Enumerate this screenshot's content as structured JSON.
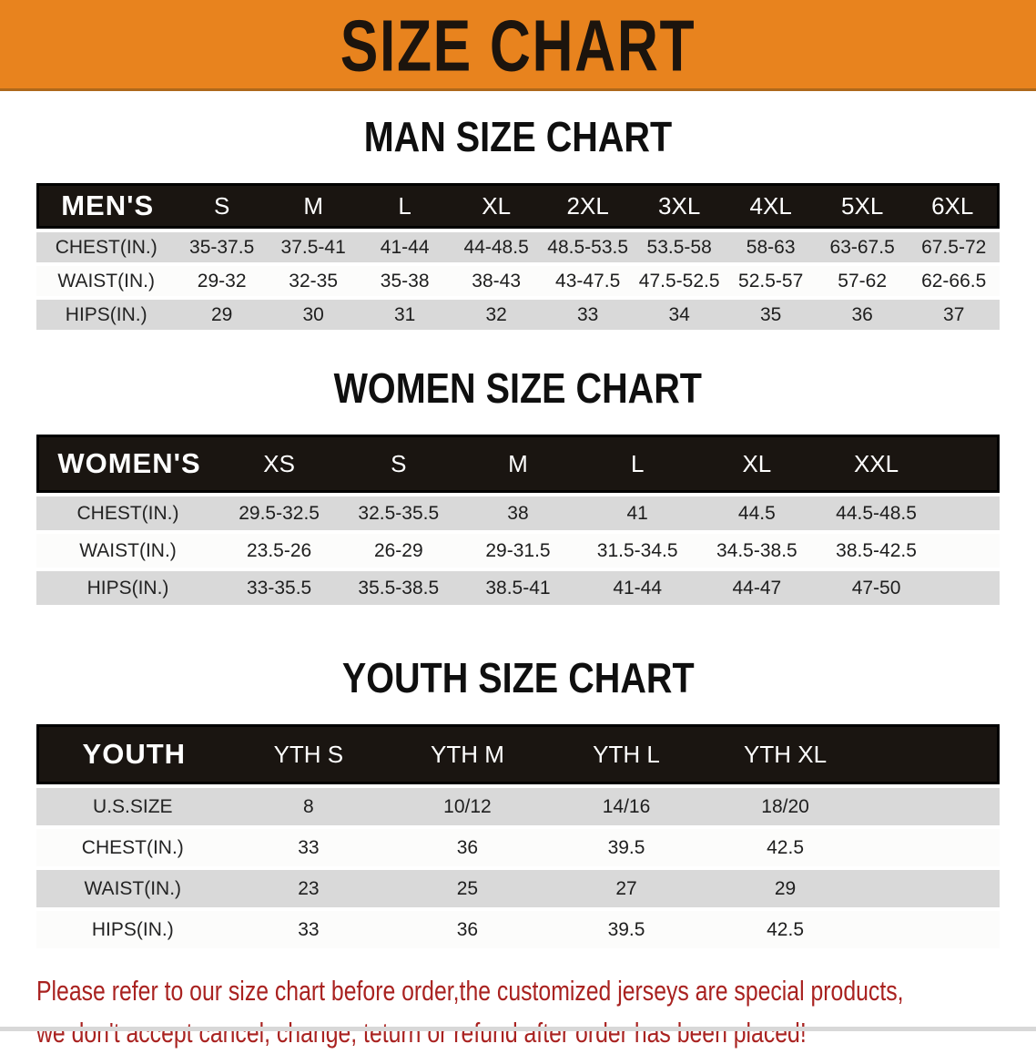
{
  "banner": {
    "title": "SIZE CHART",
    "bg_color": "#E8831E",
    "text_color": "#1C140D"
  },
  "men": {
    "heading": "MAN SIZE CHART",
    "header_label": "MEN'S",
    "columns": [
      "S",
      "M",
      "L",
      "XL",
      "2XL",
      "3XL",
      "4XL",
      "5XL",
      "6XL"
    ],
    "rows": [
      {
        "label": "CHEST(IN.)",
        "values": [
          "35-37.5",
          "37.5-41",
          "41-44",
          "44-48.5",
          "48.5-53.5",
          "53.5-58",
          "58-63",
          "63-67.5",
          "67.5-72"
        ]
      },
      {
        "label": "WAIST(IN.)",
        "values": [
          "29-32",
          "32-35",
          "35-38",
          "38-43",
          "43-47.5",
          "47.5-52.5",
          "52.5-57",
          "57-62",
          "62-66.5"
        ]
      },
      {
        "label": "HIPS(IN.)",
        "values": [
          "29",
          "30",
          "31",
          "32",
          "33",
          "34",
          "35",
          "36",
          "37"
        ]
      }
    ]
  },
  "women": {
    "heading": "WOMEN SIZE CHART",
    "header_label": "WOMEN'S",
    "columns": [
      "XS",
      "S",
      "M",
      "L",
      "XL",
      "XXL"
    ],
    "rows": [
      {
        "label": "CHEST(IN.)",
        "values": [
          "29.5-32.5",
          "32.5-35.5",
          "38",
          "41",
          "44.5",
          "44.5-48.5"
        ]
      },
      {
        "label": "WAIST(IN.)",
        "values": [
          "23.5-26",
          "26-29",
          "29-31.5",
          "31.5-34.5",
          "34.5-38.5",
          "38.5-42.5"
        ]
      },
      {
        "label": "HIPS(IN.)",
        "values": [
          "33-35.5",
          "35.5-38.5",
          "38.5-41",
          "41-44",
          "44-47",
          "47-50"
        ]
      }
    ]
  },
  "youth": {
    "heading": "YOUTH SIZE CHART",
    "header_label": "YOUTH",
    "columns": [
      "YTH S",
      "YTH M",
      "YTH L",
      "YTH XL"
    ],
    "rows": [
      {
        "label": "U.S.SIZE",
        "values": [
          "8",
          "10/12",
          "14/16",
          "18/20"
        ]
      },
      {
        "label": "CHEST(IN.)",
        "values": [
          "33",
          "36",
          "39.5",
          "42.5"
        ]
      },
      {
        "label": "WAIST(IN.)",
        "values": [
          "23",
          "25",
          "27",
          "29"
        ]
      },
      {
        "label": "HIPS(IN.)",
        "values": [
          "33",
          "36",
          "39.5",
          "42.5"
        ]
      }
    ]
  },
  "disclaimer": {
    "color": "#A92220",
    "lines": [
      "Please refer to our size chart before order,the customized jerseys are special products,",
      "we don't accept cancel, change, teturn or refund after order has been placed!"
    ]
  },
  "colors": {
    "banner_orange": "#E8831E",
    "header_bar_black": "#1A1511",
    "row_stripe_gray": "#D9D9D9",
    "disclaimer_red": "#A92220"
  }
}
